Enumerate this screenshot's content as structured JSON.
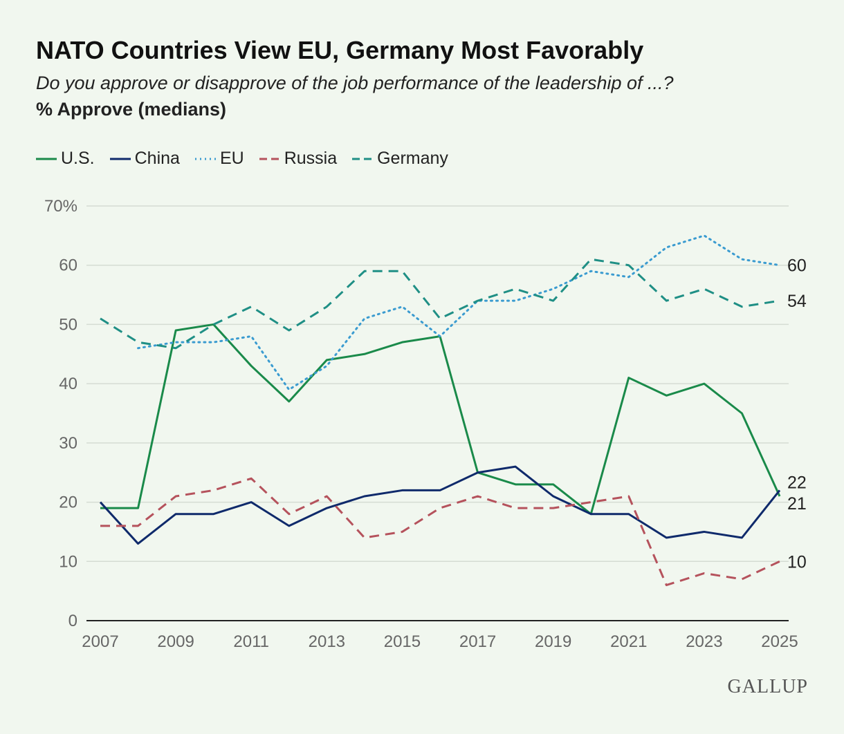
{
  "title": "NATO Countries View EU, Germany Most Favorably",
  "subtitle": "Do you approve or disapprove of the job performance of the leadership of ...?",
  "measure": "% Approve (medians)",
  "logo": "GALLUP",
  "chart_data": {
    "type": "line",
    "title": "NATO Countries View EU, Germany Most Favorably",
    "ylabel": "% Approve (medians)",
    "ylim": [
      0,
      70
    ],
    "yticks": [
      0,
      10,
      20,
      30,
      40,
      50,
      60,
      70
    ],
    "ytick_labels": [
      "0",
      "10",
      "20",
      "30",
      "40",
      "50",
      "60",
      "70%"
    ],
    "x": [
      2007,
      2008,
      2009,
      2010,
      2011,
      2012,
      2013,
      2014,
      2015,
      2016,
      2017,
      2018,
      2019,
      2020,
      2021,
      2022,
      2023,
      2024,
      2025
    ],
    "xticks": [
      2007,
      2009,
      2011,
      2013,
      2015,
      2017,
      2019,
      2021,
      2023,
      2025
    ],
    "grid": true,
    "legend": "top-left",
    "series": [
      {
        "name": "U.S.",
        "color": "#1a8a4a",
        "dash": "solid",
        "end_label": "21",
        "values": [
          19,
          19,
          49,
          50,
          43,
          37,
          44,
          45,
          47,
          48,
          25,
          23,
          23,
          18,
          41,
          38,
          40,
          35,
          21
        ]
      },
      {
        "name": "China",
        "color": "#0f2a6b",
        "dash": "solid",
        "end_label": "22",
        "values": [
          20,
          13,
          18,
          18,
          20,
          16,
          19,
          21,
          22,
          22,
          25,
          26,
          21,
          18,
          18,
          14,
          15,
          14,
          22
        ]
      },
      {
        "name": "EU",
        "color": "#3a9bd0",
        "dash": "dotted",
        "end_label": "60",
        "values": [
          null,
          46,
          47,
          47,
          48,
          39,
          43,
          51,
          53,
          48,
          54,
          54,
          56,
          59,
          58,
          63,
          65,
          61,
          60
        ]
      },
      {
        "name": "Russia",
        "color": "#b5525c",
        "dash": "dashed",
        "end_label": "10",
        "values": [
          16,
          16,
          21,
          22,
          24,
          18,
          21,
          14,
          15,
          19,
          21,
          19,
          19,
          20,
          21,
          6,
          8,
          7,
          10
        ]
      },
      {
        "name": "Germany",
        "color": "#1f8f85",
        "dash": "dashed",
        "end_label": "54",
        "values": [
          51,
          47,
          46,
          50,
          53,
          49,
          53,
          59,
          59,
          51,
          54,
          56,
          54,
          61,
          60,
          54,
          56,
          53,
          54
        ]
      }
    ]
  }
}
